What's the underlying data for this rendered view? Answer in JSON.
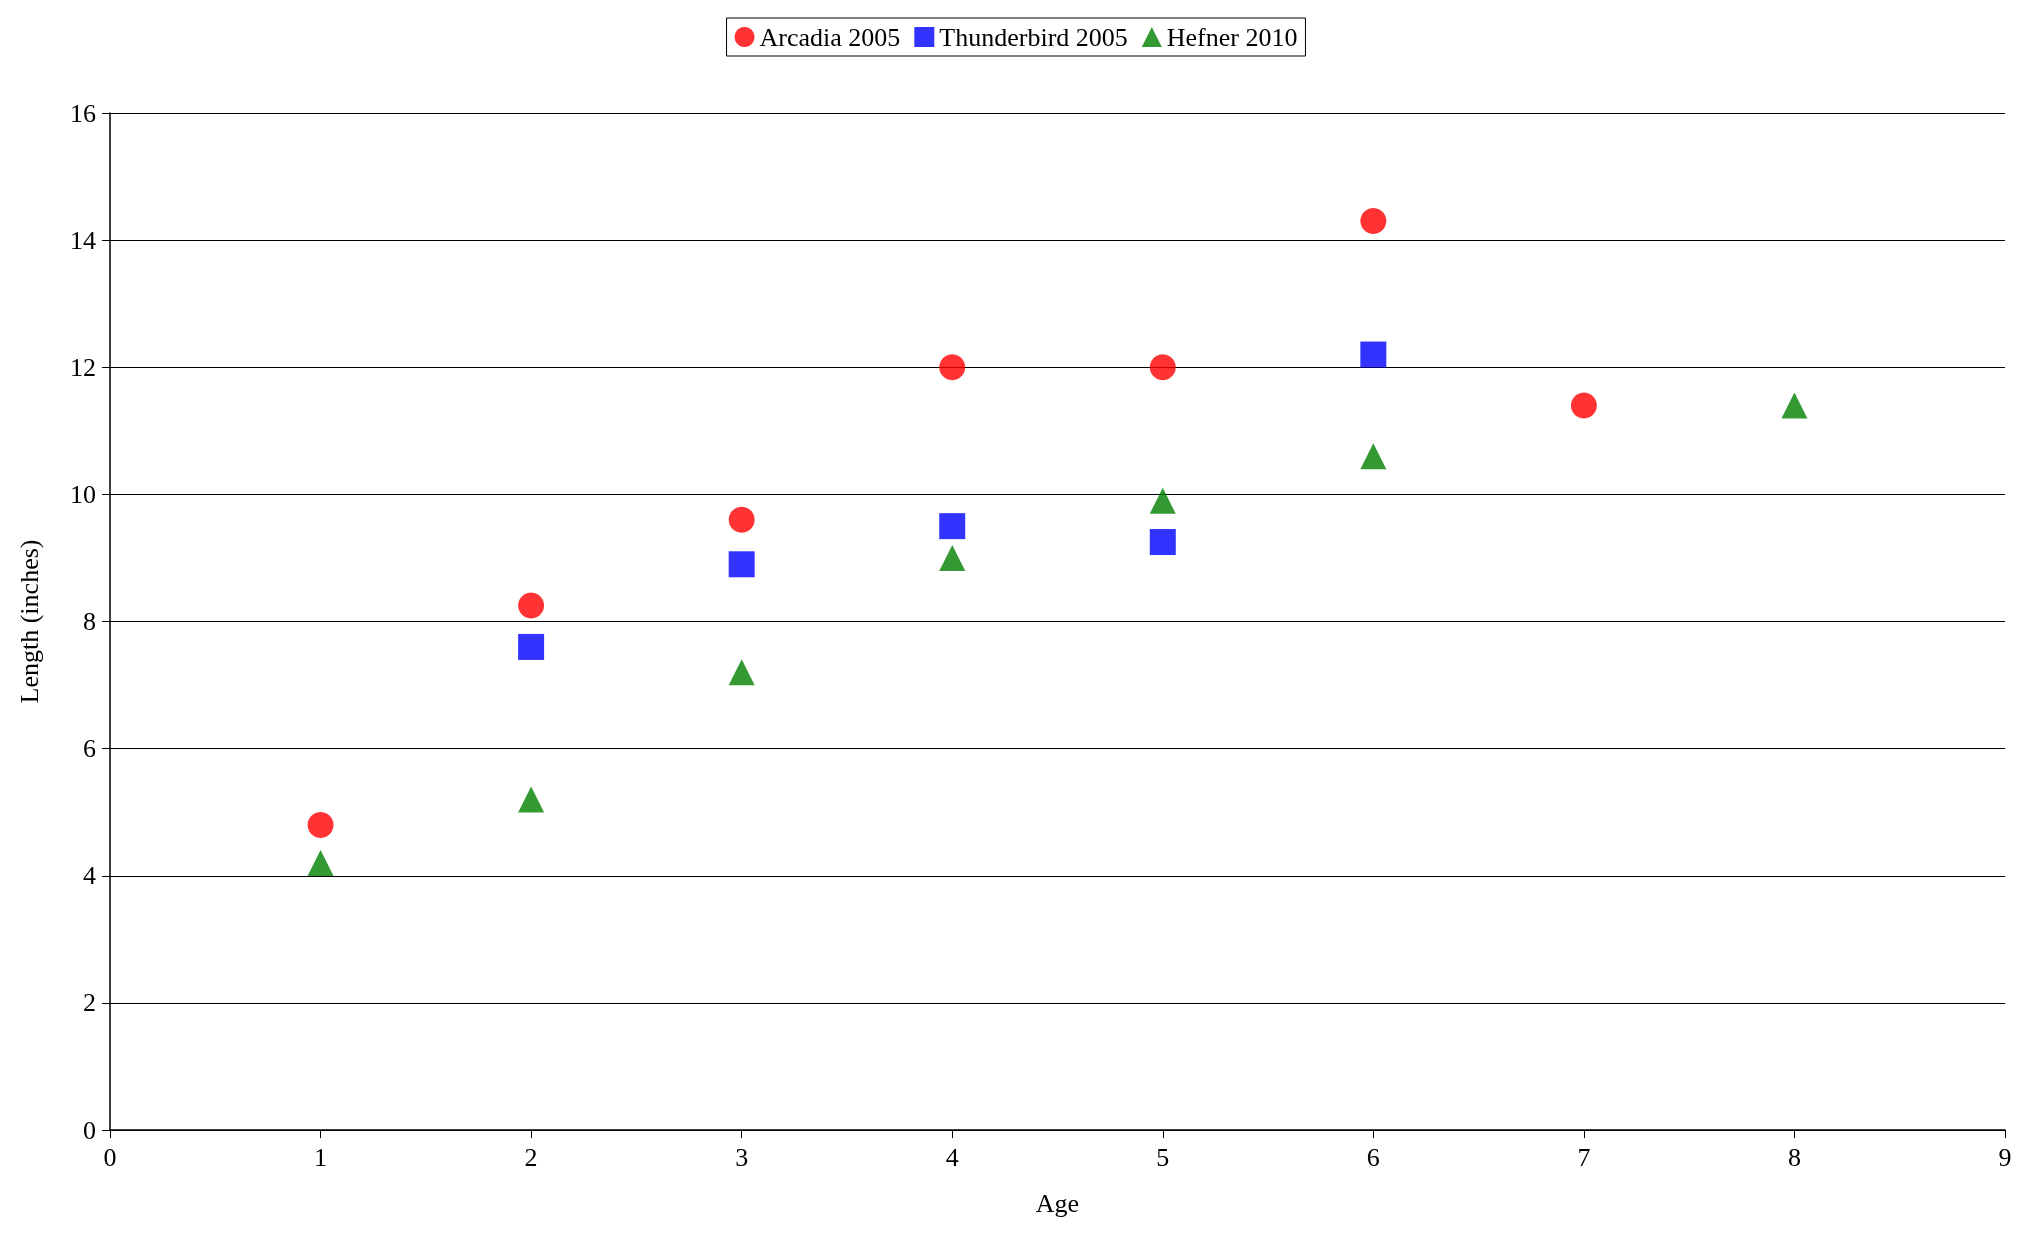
{
  "chart_data": {
    "type": "scatter",
    "xlabel": "Age",
    "ylabel": "Length (inches)",
    "xlim": [
      0,
      9
    ],
    "xticks": [
      0,
      1,
      2,
      3,
      4,
      5,
      6,
      7,
      8,
      9
    ],
    "ylim": [
      0,
      16
    ],
    "yticks": [
      0,
      2,
      4,
      6,
      8,
      10,
      12,
      14,
      16
    ],
    "grid": "y",
    "legend": "top",
    "series": [
      {
        "name": "Arcadia 2005",
        "color": "#ff0000",
        "marker": "circle",
        "x": [
          1,
          2,
          3,
          4,
          5,
          6,
          7
        ],
        "values": [
          4.8,
          8.25,
          9.6,
          12.0,
          12.0,
          14.3,
          11.4
        ]
      },
      {
        "name": "Thunderbird 2005",
        "color": "#0000ff",
        "marker": "square",
        "x": [
          2,
          3,
          4,
          5,
          6
        ],
        "values": [
          7.6,
          8.9,
          9.5,
          9.25,
          12.2
        ]
      },
      {
        "name": "Hefner 2010",
        "color": "#008000",
        "marker": "triangle",
        "x": [
          1,
          2,
          3,
          4,
          5,
          6,
          8
        ],
        "values": [
          4.2,
          5.2,
          7.2,
          9.0,
          9.9,
          10.6,
          11.4
        ]
      }
    ]
  }
}
